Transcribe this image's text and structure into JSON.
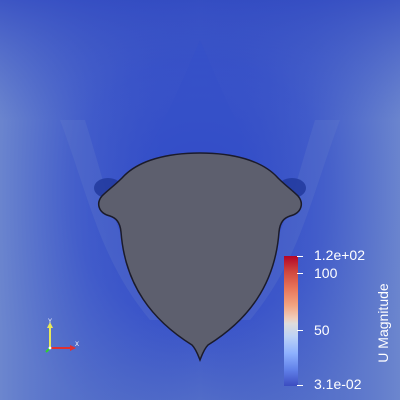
{
  "legend": {
    "title": "U Magnitude",
    "max_label": "1.2e+02",
    "tick_100": "100",
    "tick_50": "50",
    "min_label": "3.1e-02",
    "colormap_top": "#b40426",
    "colormap_bottom": "#3b4cc0"
  },
  "scene": {
    "background": "#3a53c8",
    "body_color": "#5d5f6e",
    "axes_icons": [
      "x-axis-red",
      "y-axis-yellow",
      "z-axis-green"
    ]
  }
}
